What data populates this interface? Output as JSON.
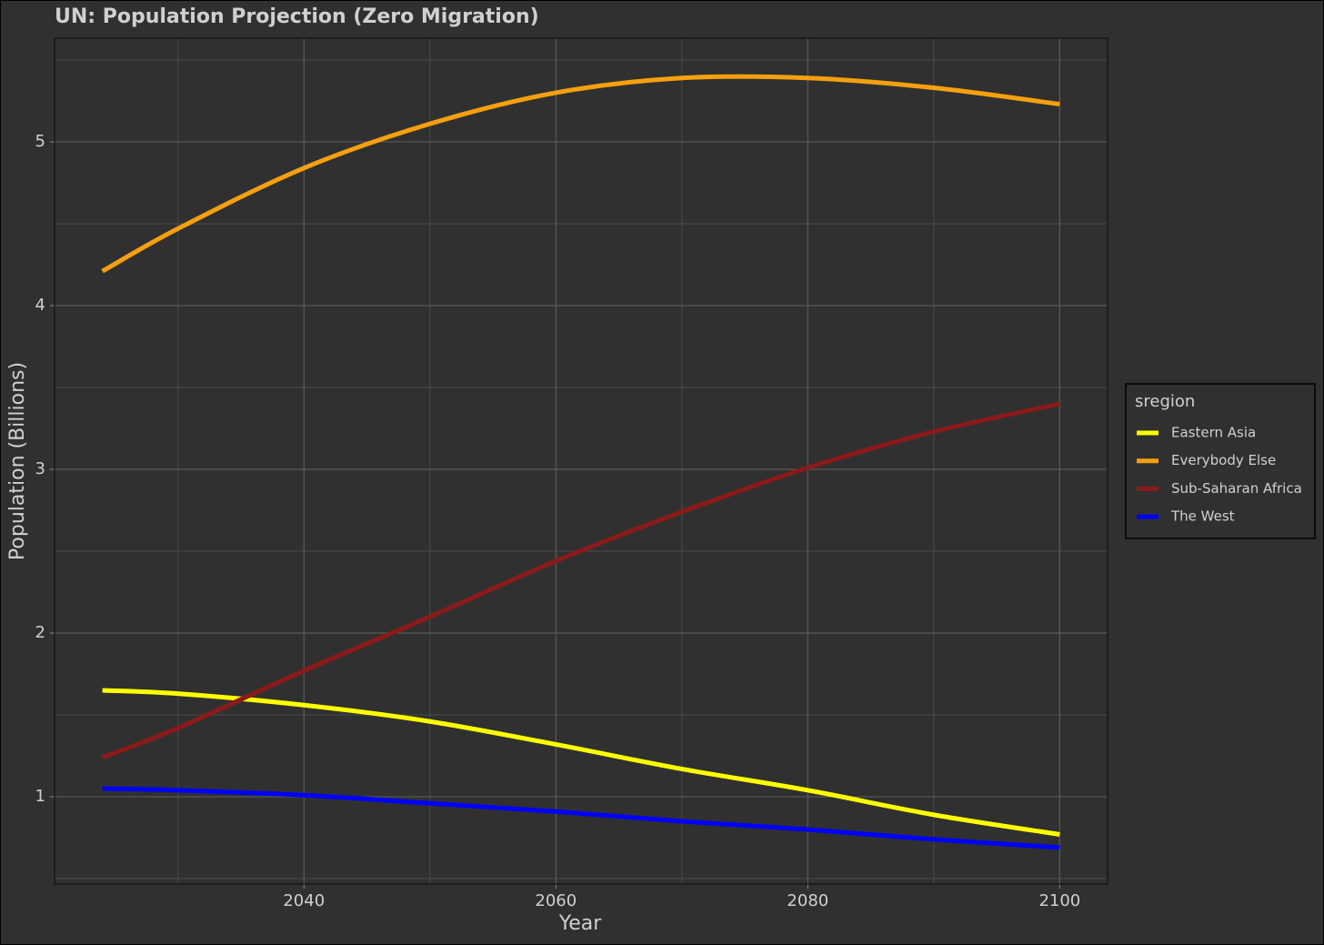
{
  "chart_data": {
    "type": "line",
    "title": "UN: Population Projection (Zero Migration)",
    "x_label": "Year",
    "y_label": "Population (Billions)",
    "legend_title": "sregion",
    "legend": "right",
    "x": [
      2024,
      2030,
      2040,
      2050,
      2060,
      2070,
      2080,
      2090,
      2100
    ],
    "series": [
      {
        "name": "Eastern Asia",
        "color": "#ffff00",
        "values": [
          1.65,
          1.63,
          1.56,
          1.46,
          1.32,
          1.17,
          1.04,
          0.89,
          0.77
        ]
      },
      {
        "name": "Everybody Else",
        "color": "#f5a00f",
        "values": [
          4.21,
          4.47,
          4.84,
          5.11,
          5.3,
          5.39,
          5.39,
          5.33,
          5.23
        ]
      },
      {
        "name": "Sub-Saharan Africa",
        "color": "#8b1a1a",
        "values": [
          1.24,
          1.42,
          1.77,
          2.1,
          2.44,
          2.74,
          3.01,
          3.23,
          3.4
        ]
      },
      {
        "name": "The West",
        "color": "#0000ff",
        "values": [
          1.05,
          1.04,
          1.01,
          0.96,
          0.91,
          0.85,
          0.8,
          0.74,
          0.69
        ]
      }
    ],
    "xlim": [
      2020.2,
      2103.8
    ],
    "xticks": [
      2040,
      2060,
      2080,
      2100
    ],
    "x_minor_ticks": [
      2030,
      2050,
      2070,
      2090
    ],
    "ylim": [
      0.467,
      5.633
    ],
    "yticks": [
      1,
      2,
      3,
      4,
      5
    ],
    "y_minor_ticks": [
      0.5,
      1.5,
      2.5,
      3.5,
      4.5,
      5.5
    ],
    "grid": true
  }
}
